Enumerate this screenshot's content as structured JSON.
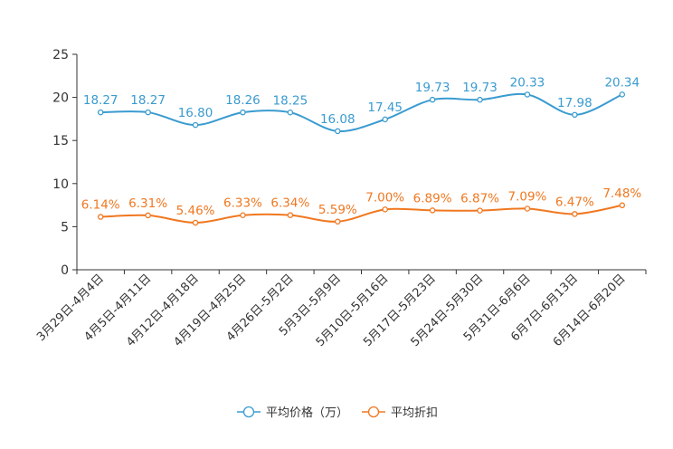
{
  "chart_data": {
    "type": "line",
    "title": "",
    "xlabel": "",
    "ylabel": "",
    "ylim": [
      0,
      25
    ],
    "yticks": [
      0,
      5,
      10,
      15,
      20,
      25
    ],
    "grid": false,
    "legend_position": "bottom-center",
    "categories": [
      "3月29日-4月4日",
      "4月5日-4月11日",
      "4月12日-4月18日",
      "4月19日-4月25日",
      "4月26日-5月2日",
      "5月3日-5月9日",
      "5月10日-5月16日",
      "5月17日-5月23日",
      "5月24日-5月30日",
      "5月31日-6月6日",
      "6月7日-6月13日",
      "6月14日-6月20日"
    ],
    "series": [
      {
        "name": "平均价格（万）",
        "color": "#3a9bd0",
        "values": [
          18.27,
          18.27,
          16.8,
          18.26,
          18.25,
          16.08,
          17.45,
          19.73,
          19.73,
          20.33,
          17.98,
          20.34
        ],
        "labels": [
          "18.27",
          "18.27",
          "16.80",
          "18.26",
          "18.25",
          "16.08",
          "17.45",
          "19.73",
          "19.73",
          "20.33",
          "17.98",
          "20.34"
        ]
      },
      {
        "name": "平均折扣",
        "color": "#f07820",
        "values": [
          6.14,
          6.31,
          5.46,
          6.33,
          6.34,
          5.59,
          7.0,
          6.89,
          6.87,
          7.09,
          6.47,
          7.48
        ],
        "labels": [
          "6.14%",
          "6.31%",
          "5.46%",
          "6.33%",
          "6.34%",
          "5.59%",
          "7.00%",
          "6.89%",
          "6.87%",
          "7.09%",
          "6.47%",
          "7.48%"
        ]
      }
    ]
  }
}
